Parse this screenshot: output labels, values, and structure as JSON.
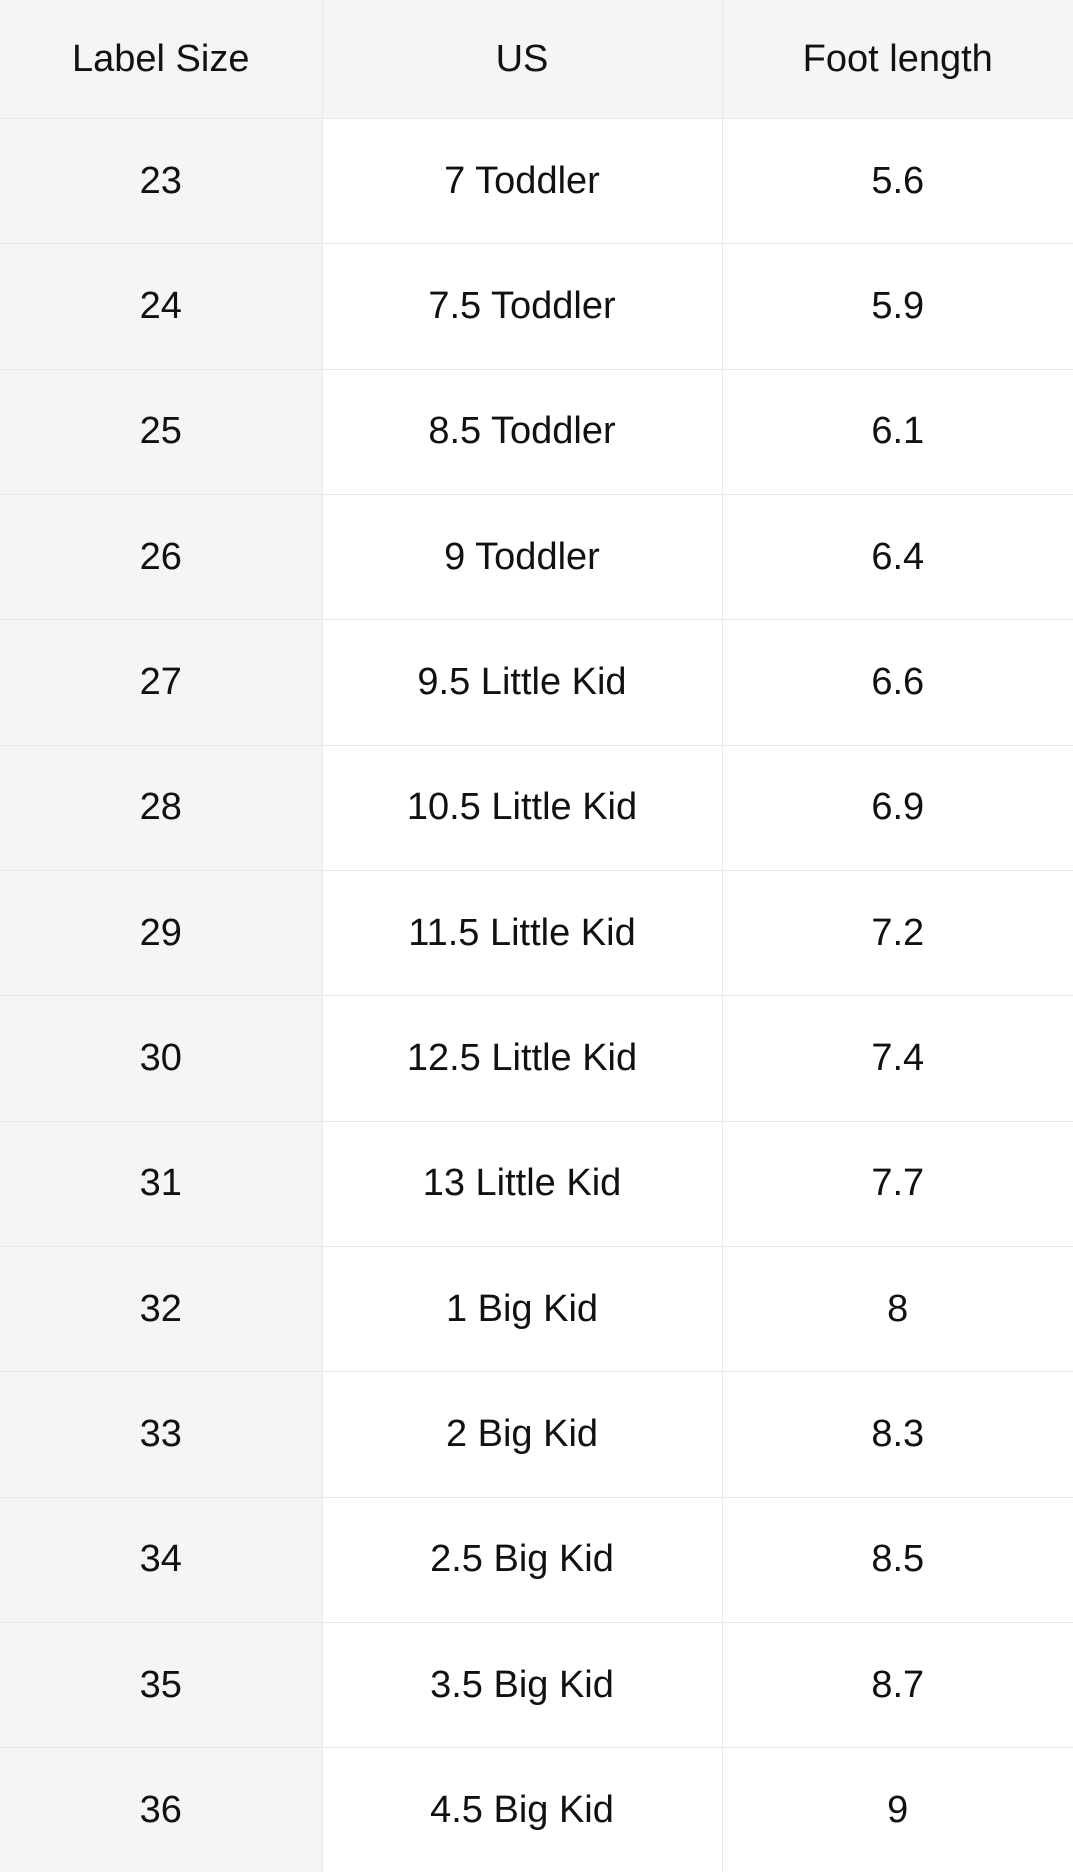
{
  "colors": {
    "header-bg": "#f5f5f5",
    "label-col-bg": "#f5f5f5",
    "border": "#e9e9e9",
    "text": "#111111"
  },
  "table": {
    "columns": [
      "Label Size",
      "US",
      "Foot length"
    ],
    "rows": [
      [
        "23",
        "7 Toddler",
        "5.6"
      ],
      [
        "24",
        "7.5 Toddler",
        "5.9"
      ],
      [
        "25",
        "8.5 Toddler",
        "6.1"
      ],
      [
        "26",
        "9 Toddler",
        "6.4"
      ],
      [
        "27",
        "9.5 Little Kid",
        "6.6"
      ],
      [
        "28",
        "10.5 Little Kid",
        "6.9"
      ],
      [
        "29",
        "11.5 Little Kid",
        "7.2"
      ],
      [
        "30",
        "12.5 Little Kid",
        "7.4"
      ],
      [
        "31",
        "13 Little Kid",
        "7.7"
      ],
      [
        "32",
        "1 Big Kid",
        "8"
      ],
      [
        "33",
        "2 Big Kid",
        "8.3"
      ],
      [
        "34",
        "2.5 Big Kid",
        "8.5"
      ],
      [
        "35",
        "3.5 Big Kid",
        "8.7"
      ],
      [
        "36",
        "4.5 Big Kid",
        "9"
      ]
    ]
  }
}
